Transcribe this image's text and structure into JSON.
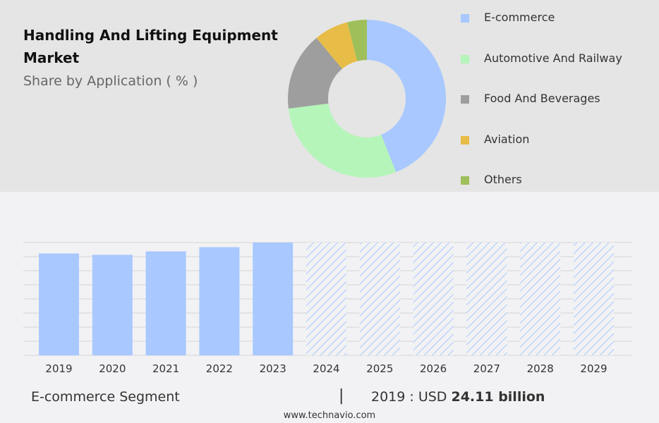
{
  "header": {
    "title": "Handling And Lifting Equipment Market",
    "subtitle": "Share by Application ( % )"
  },
  "colors": {
    "ecommerce": "#a8c8ff",
    "automotive": "#b5f5b9",
    "food": "#9e9e9e",
    "aviation": "#e8bd47",
    "others": "#9fbf5a",
    "bar": "#a8c8ff",
    "hatch": "#a8c8ff",
    "grid": "#d4d4d4"
  },
  "chart_data": [
    {
      "type": "pie",
      "donut": true,
      "categories": [
        "E-commerce",
        "Automotive And Railway",
        "Food And Beverages",
        "Aviation",
        "Others"
      ],
      "values": [
        44,
        29,
        16,
        7,
        4
      ],
      "legend_position": "right"
    },
    {
      "type": "bar",
      "categories": [
        "2019",
        "2020",
        "2021",
        "2022",
        "2023",
        "2024",
        "2025",
        "2026",
        "2027",
        "2028",
        "2029"
      ],
      "values": [
        24.11,
        23.8,
        24.6,
        25.6,
        26.7,
        null,
        null,
        null,
        null,
        null,
        null
      ],
      "forecast": [
        false,
        false,
        false,
        false,
        false,
        true,
        true,
        true,
        true,
        true,
        true
      ],
      "ylim": [
        0,
        26.7
      ],
      "grid": true
    }
  ],
  "footer": {
    "segment": "E-commerce Segment",
    "separator": "|",
    "year_label": "2019 : USD",
    "amount": "24.11 billion",
    "source": "www.technavio.com"
  }
}
